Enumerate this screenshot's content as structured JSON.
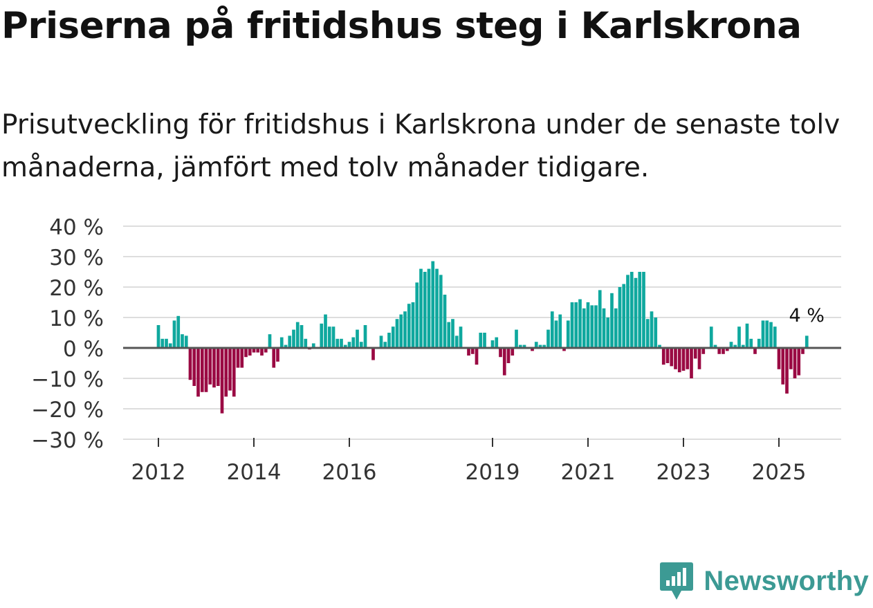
{
  "title": "Priserna på fritidshus steg i Karlskrona",
  "subtitle": "Prisutveckling för fritidshus i Karlskrona under de senaste tolv månaderna, jämfört med tolv månader tidigare.",
  "brand": {
    "name": "Newsworthy",
    "icon": "newsworthy-logo-icon"
  },
  "colors": {
    "positive": "#0fa89e",
    "negative": "#9a0a43",
    "grid": "#dddddd",
    "zero_line": "#555555",
    "brand": "#3c9a94"
  },
  "chart_data": {
    "type": "bar",
    "title": "Priserna på fritidshus steg i Karlskrona",
    "xlabel": "",
    "ylabel": "",
    "ylim": [
      -30,
      40
    ],
    "y_ticks": [
      40,
      30,
      20,
      10,
      0,
      -10,
      -20,
      -30
    ],
    "y_tick_labels": [
      "40 %",
      "30 %",
      "20 %",
      "10 %",
      "0 %",
      "−10 %",
      "−20 %",
      "−30 %"
    ],
    "x_ticks": [
      {
        "label": "2012",
        "index": 0
      },
      {
        "label": "2014",
        "index": 24
      },
      {
        "label": "2016",
        "index": 48
      },
      {
        "label": "2019",
        "index": 84
      },
      {
        "label": "2021",
        "index": 108
      },
      {
        "label": "2023",
        "index": 132
      },
      {
        "label": "2025",
        "index": 156
      }
    ],
    "x_start": "2012-01",
    "unit": "%",
    "annotation": {
      "text": "4 %",
      "index": 163
    },
    "series": [
      {
        "name": "Prisutveckling",
        "values": [
          7.5,
          3,
          3,
          1.5,
          9,
          10.5,
          4.5,
          4,
          -10.5,
          -12.5,
          -16,
          -14.5,
          -14.5,
          -12,
          -13,
          -12.5,
          -21.5,
          -16,
          -14,
          -16,
          -6.5,
          -6.5,
          -3,
          -2.5,
          -1.5,
          -1.5,
          -2.5,
          -1.5,
          4.5,
          -6.5,
          -4.5,
          3.5,
          1,
          4,
          6,
          8.5,
          7.5,
          3,
          -0.5,
          1.5,
          0,
          8,
          11,
          7,
          7,
          3,
          3,
          1,
          2,
          3.5,
          6,
          2,
          7.5,
          0,
          -4,
          0,
          4,
          2,
          5,
          7,
          9.5,
          11,
          12,
          14.5,
          15,
          21.5,
          26,
          25,
          26,
          28.5,
          26,
          24,
          17.5,
          8.5,
          9.5,
          4,
          7,
          0,
          -2.5,
          -2,
          -5.5,
          5,
          5,
          0,
          2.5,
          3.5,
          -3,
          -9,
          -5,
          -2.5,
          6,
          1,
          1,
          0,
          -1,
          2,
          1,
          1,
          6,
          12,
          9,
          11,
          -1,
          9,
          15,
          15,
          16,
          13,
          15,
          14,
          14,
          19,
          13,
          10,
          18,
          13,
          20,
          21,
          24,
          25,
          23,
          25,
          25,
          9.5,
          12,
          10,
          1,
          -5.5,
          -5,
          -6,
          -7,
          -8,
          -7.5,
          -7,
          -10,
          -3.5,
          -7,
          -2,
          0,
          7,
          1,
          -2,
          -2,
          -1,
          2,
          1,
          7,
          1,
          8,
          3,
          -2,
          3,
          9,
          9,
          8.5,
          7,
          -7,
          -12,
          -15,
          -7,
          -10,
          -9,
          -2,
          4
        ]
      }
    ]
  }
}
